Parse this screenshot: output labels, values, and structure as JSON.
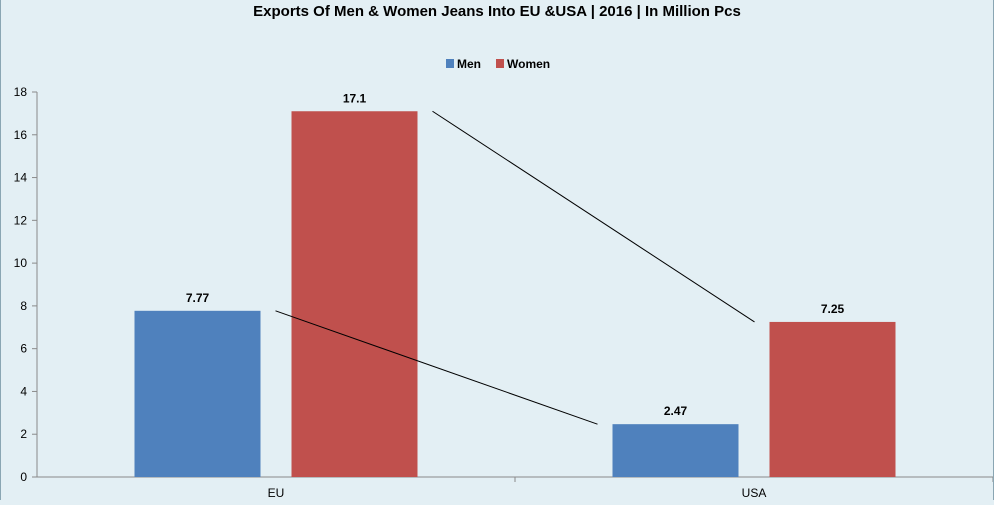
{
  "chart_data": {
    "type": "bar",
    "title": "Exports Of Men & Women Jeans Into EU &USA | 2016 | In Million Pcs",
    "categories": [
      "EU",
      "USA"
    ],
    "series": [
      {
        "name": "Men",
        "values": [
          7.77,
          2.47
        ],
        "labels": [
          "7.77",
          "2.47"
        ],
        "color": "#4f81bd"
      },
      {
        "name": "Women",
        "values": [
          17.1,
          7.25
        ],
        "labels": [
          "17.1",
          "7.25"
        ],
        "color": "#c0504d"
      }
    ],
    "ylim": [
      0,
      18
    ],
    "yticks": [
      "0",
      "2",
      "4",
      "6",
      "8",
      "10",
      "12",
      "14",
      "16",
      "18"
    ],
    "grid": false,
    "legend": "top-center",
    "trendlines": true
  },
  "colors": {
    "background": "#e3eff4",
    "axis": "#8a8a8a",
    "text": "#000000"
  }
}
